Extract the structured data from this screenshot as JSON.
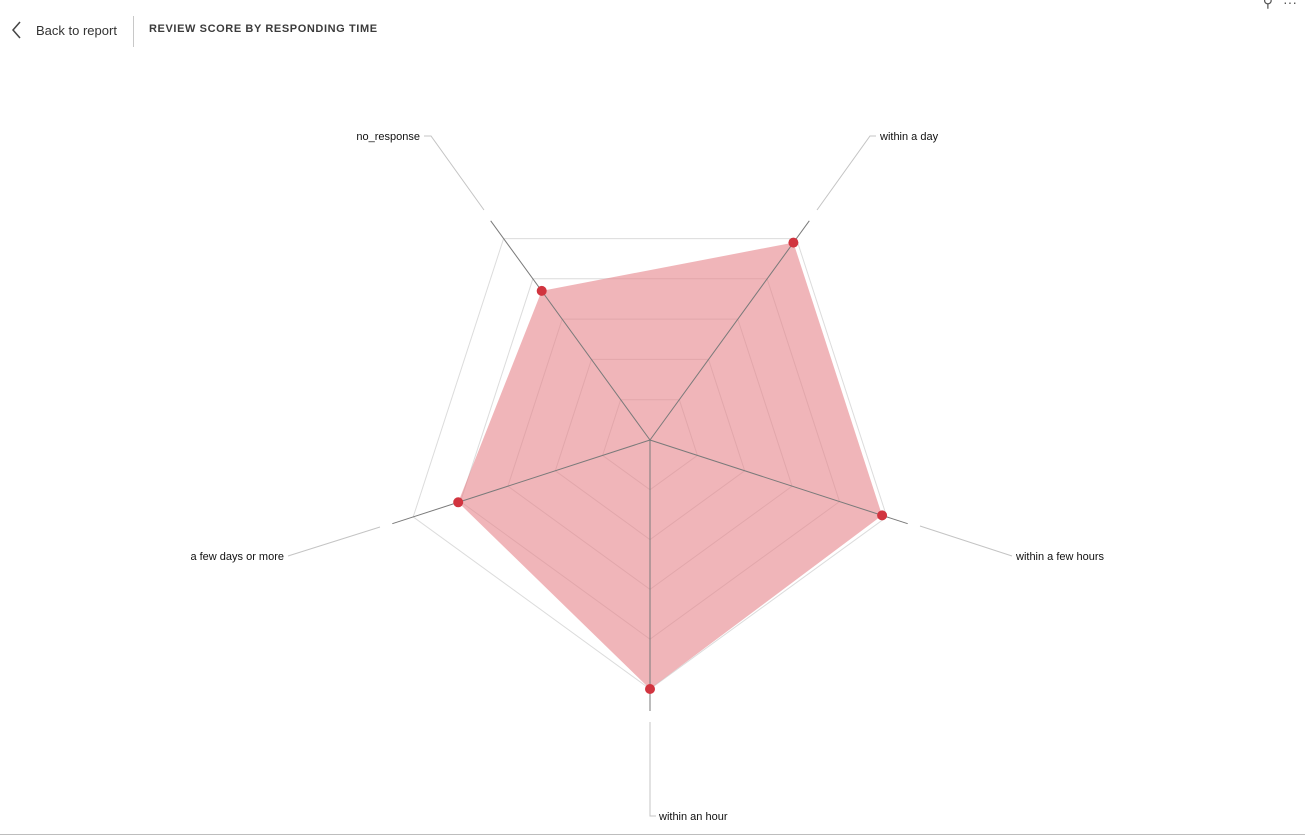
{
  "header": {
    "back_label": "Back to report",
    "title": "REVIEW SCORE BY RESPONDING TIME"
  },
  "icons": {
    "back": "chevron-left-icon",
    "filter": "filter-icon",
    "more": "more-options-icon"
  },
  "colors": {
    "fill": "#e6848b",
    "marker": "#d1343f",
    "axis": "#7a7a7a",
    "grid": "#dcdcdc"
  },
  "chart_data": {
    "type": "radar",
    "title": "REVIEW SCORE BY RESPONDING TIME",
    "categories": [
      "within a day",
      "within a few hours",
      "within an hour",
      "a few days or more",
      "no_response"
    ],
    "series": [
      {
        "values": [
          0.98,
          0.98,
          1.0,
          0.81,
          0.74
        ]
      }
    ],
    "r_range": [
      0,
      1
    ],
    "grid_levels": 5,
    "legend": "none"
  }
}
